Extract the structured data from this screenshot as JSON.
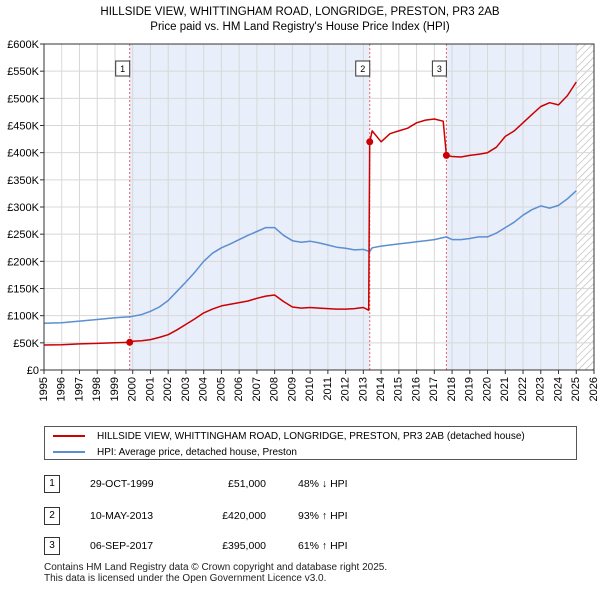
{
  "chart_data": {
    "type": "line",
    "title": "HILLSIDE VIEW, WHITTINGHAM ROAD, LONGRIDGE, PRESTON, PR3 2AB",
    "subtitle": "Price paid vs. HM Land Registry's House Price Index (HPI)",
    "xlabel": "",
    "ylabel": "",
    "xlim": [
      1995,
      2026
    ],
    "ylim": [
      0,
      600000
    ],
    "x_ticks": [
      1995,
      1996,
      1997,
      1998,
      1999,
      2000,
      2001,
      2002,
      2003,
      2004,
      2005,
      2006,
      2007,
      2008,
      2009,
      2010,
      2011,
      2012,
      2013,
      2014,
      2015,
      2016,
      2017,
      2018,
      2019,
      2020,
      2021,
      2022,
      2023,
      2024,
      2025,
      2026
    ],
    "x_tick_labels": [
      "1995",
      "1996",
      "1997",
      "1998",
      "1999",
      "2000",
      "2001",
      "2002",
      "2003",
      "2004",
      "2005",
      "2006",
      "2007",
      "2008",
      "2009",
      "2010",
      "2011",
      "2012",
      "2013",
      "2014",
      "2015",
      "2016",
      "2017",
      "2018",
      "2019",
      "2020",
      "2021",
      "2022",
      "2023",
      "2024",
      "2025",
      "2026"
    ],
    "y_ticks": [
      0,
      50000,
      100000,
      150000,
      200000,
      250000,
      300000,
      350000,
      400000,
      450000,
      500000,
      550000,
      600000
    ],
    "y_tick_labels": [
      "£0",
      "£50K",
      "£100K",
      "£150K",
      "£200K",
      "£250K",
      "£300K",
      "£350K",
      "£400K",
      "£450K",
      "£500K",
      "£550K",
      "£600K"
    ],
    "grid": true,
    "shaded_ranges": [
      [
        1999.83,
        2013.36
      ],
      [
        2017.68,
        2025.0
      ]
    ],
    "hatched_from": 2025.0,
    "series": [
      {
        "name": "HILLSIDE VIEW, WHITTINGHAM ROAD, LONGRIDGE, PRESTON, PR3 2AB (detached house)",
        "color": "#cc0000",
        "x": [
          1995.0,
          1996.0,
          1997.0,
          1998.0,
          1999.0,
          1999.83,
          2000.0,
          2000.5,
          2001.0,
          2001.5,
          2002.0,
          2002.5,
          2003.0,
          2003.5,
          2004.0,
          2004.5,
          2005.0,
          2005.5,
          2006.0,
          2006.5,
          2007.0,
          2007.5,
          2008.0,
          2008.5,
          2009.0,
          2009.5,
          2010.0,
          2010.5,
          2011.0,
          2011.5,
          2012.0,
          2012.5,
          2013.0,
          2013.3,
          2013.36,
          2013.5,
          2014.0,
          2014.5,
          2015.0,
          2015.5,
          2016.0,
          2016.5,
          2017.0,
          2017.5,
          2017.68,
          2018.0,
          2018.5,
          2019.0,
          2019.5,
          2020.0,
          2020.5,
          2021.0,
          2021.5,
          2022.0,
          2022.5,
          2023.0,
          2023.5,
          2024.0,
          2024.5,
          2025.0
        ],
        "values": [
          46000,
          46500,
          48000,
          49000,
          50000,
          51000,
          53000,
          54000,
          56000,
          60000,
          65000,
          74000,
          84000,
          94000,
          105000,
          112000,
          118000,
          121000,
          124000,
          127000,
          132000,
          136000,
          138000,
          126000,
          116000,
          114000,
          115000,
          114000,
          113000,
          112000,
          112000,
          113000,
          115000,
          110000,
          420000,
          440000,
          420000,
          435000,
          440000,
          445000,
          455000,
          460000,
          462000,
          458000,
          395000,
          393000,
          392000,
          395000,
          397000,
          400000,
          410000,
          430000,
          440000,
          455000,
          470000,
          485000,
          492000,
          488000,
          505000,
          530000
        ]
      },
      {
        "name": "HPI: Average price, detached house, Preston",
        "color": "#5b8fd0",
        "x": [
          1995.0,
          1996.0,
          1997.0,
          1998.0,
          1999.0,
          1999.83,
          2000.5,
          2001.0,
          2001.5,
          2002.0,
          2002.5,
          2003.0,
          2003.5,
          2004.0,
          2004.5,
          2005.0,
          2005.5,
          2006.0,
          2006.5,
          2007.0,
          2007.5,
          2008.0,
          2008.5,
          2009.0,
          2009.5,
          2010.0,
          2010.5,
          2011.0,
          2011.5,
          2012.0,
          2012.5,
          2013.0,
          2013.36,
          2013.5,
          2014.0,
          2014.5,
          2015.0,
          2015.5,
          2016.0,
          2016.5,
          2017.0,
          2017.68,
          2018.0,
          2018.5,
          2019.0,
          2019.5,
          2020.0,
          2020.5,
          2021.0,
          2021.5,
          2022.0,
          2022.5,
          2023.0,
          2023.5,
          2024.0,
          2024.5,
          2025.0
        ],
        "values": [
          86000,
          87000,
          90000,
          93000,
          96000,
          98000,
          102000,
          108000,
          116000,
          128000,
          145000,
          162000,
          180000,
          200000,
          215000,
          225000,
          232000,
          240000,
          248000,
          255000,
          262000,
          262000,
          248000,
          238000,
          235000,
          237000,
          234000,
          230000,
          226000,
          224000,
          221000,
          222000,
          218000,
          225000,
          228000,
          230000,
          232000,
          234000,
          236000,
          238000,
          240000,
          245000,
          240000,
          240000,
          242000,
          245000,
          245000,
          252000,
          262000,
          272000,
          285000,
          295000,
          302000,
          298000,
          303000,
          315000,
          330000
        ]
      }
    ],
    "sales": [
      {
        "label": "1",
        "x": 1999.83,
        "value": 51000
      },
      {
        "label": "2",
        "x": 2013.36,
        "value": 420000
      },
      {
        "label": "3",
        "x": 2017.68,
        "value": 395000
      }
    ]
  },
  "legend": {
    "entries": [
      {
        "label": "HILLSIDE VIEW, WHITTINGHAM ROAD, LONGRIDGE, PRESTON, PR3 2AB (detached house)",
        "color": "#cc0000"
      },
      {
        "label": "HPI: Average price, detached house, Preston",
        "color": "#5b8fd0"
      }
    ]
  },
  "sales_table": [
    {
      "label": "1",
      "date": "29-OCT-1999",
      "price": "£51,000",
      "hpi": "48% ↓ HPI"
    },
    {
      "label": "2",
      "date": "10-MAY-2013",
      "price": "£420,000",
      "hpi": "93% ↑ HPI"
    },
    {
      "label": "3",
      "date": "06-SEP-2017",
      "price": "£395,000",
      "hpi": "61% ↑ HPI"
    }
  ],
  "footer": {
    "line1": "Contains HM Land Registry data © Crown copyright and database right 2025.",
    "line2": "This data is licensed under the Open Government Licence v3.0."
  }
}
